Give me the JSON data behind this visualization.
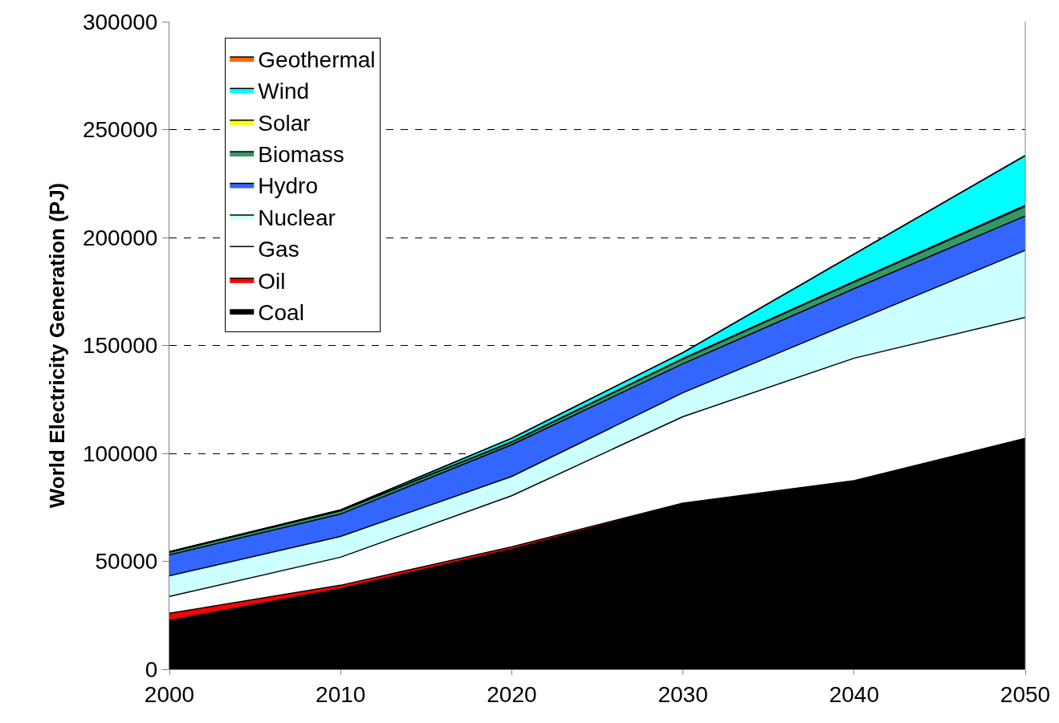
{
  "chart_data": {
    "type": "area",
    "stacked": true,
    "ylabel": "World Electricity Generation (PJ)",
    "x": [
      2000,
      2010,
      2020,
      2030,
      2040,
      2050
    ],
    "xlim": [
      2000,
      2050
    ],
    "xticks": [
      2000,
      2010,
      2020,
      2030,
      2040,
      2050
    ],
    "ylim": [
      0,
      300000
    ],
    "yticks": [
      0,
      50000,
      100000,
      150000,
      200000,
      250000,
      300000
    ],
    "grid": "y",
    "legend": "top left",
    "series": [
      {
        "name": "Coal",
        "color": "#000000",
        "values": [
          22600,
          37400,
          55600,
          76700,
          87000,
          106700
        ]
      },
      {
        "name": "Oil",
        "color": "#ff0000",
        "values": [
          3300,
          1500,
          1100,
          300,
          400,
          300
        ]
      },
      {
        "name": "Gas",
        "color": "#ffffff",
        "values": [
          7800,
          13000,
          23700,
          40000,
          56700,
          56000
        ]
      },
      {
        "name": "Nuclear",
        "color": "#ccffff",
        "values": [
          9600,
          9600,
          8900,
          11100,
          17000,
          31100
        ]
      },
      {
        "name": "Hydro",
        "color": "#3366ff",
        "values": [
          9700,
          10400,
          14700,
          13400,
          15200,
          15900
        ]
      },
      {
        "name": "Biomass",
        "color": "#339966",
        "values": [
          1200,
          1500,
          1200,
          2200,
          3000,
          4400
        ]
      },
      {
        "name": "Solar",
        "color": "#ffff00",
        "values": [
          100,
          100,
          200,
          300,
          400,
          500
        ]
      },
      {
        "name": "Wind",
        "color": "#00ffff",
        "values": [
          200,
          300,
          1600,
          2700,
          12600,
          23100
        ]
      },
      {
        "name": "Geothermal",
        "color": "#ff6600",
        "values": [
          null,
          null,
          null,
          null,
          null,
          null
        ]
      }
    ]
  }
}
